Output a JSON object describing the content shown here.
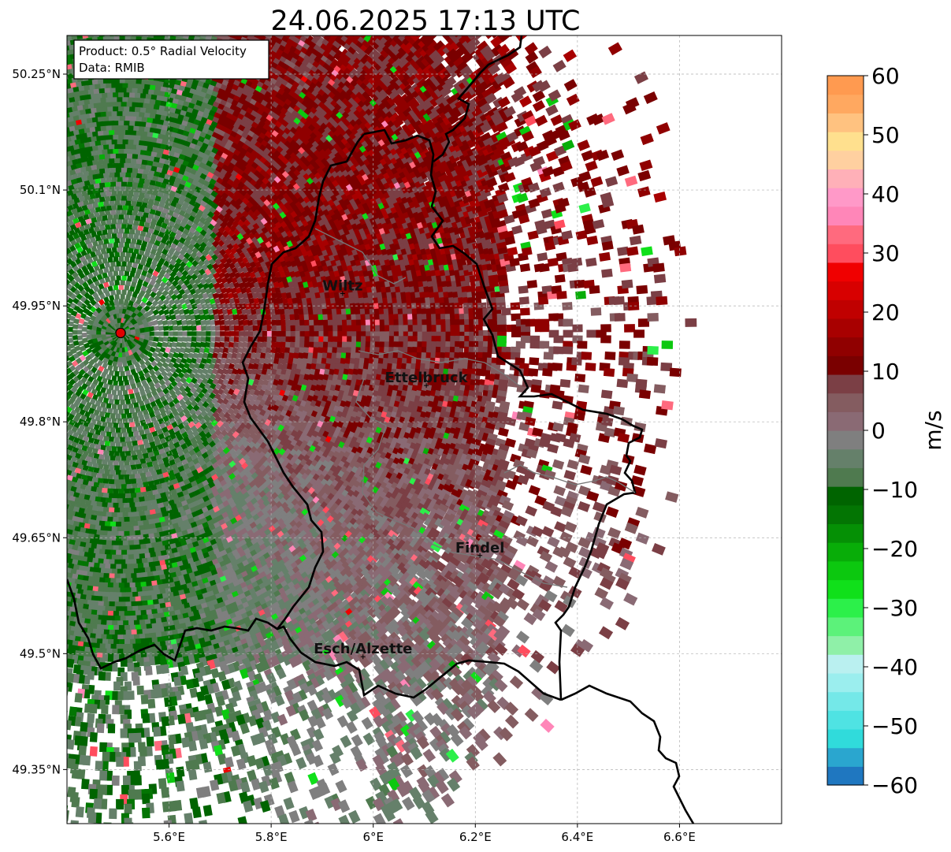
{
  "title": "24.06.2025 17:13 UTC",
  "info": {
    "product": "Product: 0.5° Radial Velocity",
    "data": "Data: RMIB"
  },
  "map": {
    "extent": {
      "lon_min": 5.4,
      "lon_max": 6.8,
      "lat_min": 49.28,
      "lat_max": 50.3
    },
    "lon_ticks": [
      {
        "value": 5.6,
        "label": "5.6°E"
      },
      {
        "value": 5.8,
        "label": "5.8°E"
      },
      {
        "value": 6.0,
        "label": "6°E"
      },
      {
        "value": 6.2,
        "label": "6.2°E"
      },
      {
        "value": 6.4,
        "label": "6.4°E"
      },
      {
        "value": 6.6,
        "label": "6.6°E"
      }
    ],
    "lat_ticks": [
      {
        "value": 50.25,
        "label": "50.25°N"
      },
      {
        "value": 50.1,
        "label": "50.1°N"
      },
      {
        "value": 49.95,
        "label": "49.95°N"
      },
      {
        "value": 49.8,
        "label": "49.8°N"
      },
      {
        "value": 49.65,
        "label": "49.65°N"
      },
      {
        "value": 49.5,
        "label": "49.5°N"
      },
      {
        "value": 49.35,
        "label": "49.35°N"
      }
    ],
    "gridlines": true,
    "radar_site": {
      "lon": 5.505,
      "lat": 49.915
    },
    "cities": [
      {
        "name": "Wiltz",
        "lon": 5.94,
        "lat": 49.966
      },
      {
        "name": "Ettelbruck",
        "lon": 6.104,
        "lat": 49.847
      },
      {
        "name": "Findel",
        "lon": 6.209,
        "lat": 49.627
      },
      {
        "name": "Esch/Alzette",
        "lon": 5.98,
        "lat": 49.496
      }
    ]
  },
  "colorbar": {
    "label": "m/s",
    "vmin": -60,
    "vmax": 60,
    "ticks": [
      {
        "value": 60,
        "label": "60"
      },
      {
        "value": 50,
        "label": "50"
      },
      {
        "value": 40,
        "label": "40"
      },
      {
        "value": 30,
        "label": "30"
      },
      {
        "value": 20,
        "label": "20"
      },
      {
        "value": 10,
        "label": "10"
      },
      {
        "value": 0,
        "label": "0"
      },
      {
        "value": -10,
        "label": "−10"
      },
      {
        "value": -20,
        "label": "−20"
      },
      {
        "value": -30,
        "label": "−30"
      },
      {
        "value": -40,
        "label": "−40"
      },
      {
        "value": -50,
        "label": "−50"
      },
      {
        "value": -60,
        "label": "−60"
      }
    ],
    "colors": [
      "#1f77c0",
      "#2aa6cf",
      "#30dbdb",
      "#4fe3e3",
      "#74e8e8",
      "#9beeee",
      "#baf0f0",
      "#8ff0a8",
      "#5cf27a",
      "#2cf04a",
      "#10e01a",
      "#0cc80f",
      "#08ad08",
      "#059005",
      "#037503",
      "#006400",
      "#4f7a4f",
      "#65806a",
      "#7f7f7f",
      "#8a6a74",
      "#845c60",
      "#7b3f45",
      "#7a0000",
      "#900000",
      "#a80000",
      "#c00000",
      "#d80000",
      "#f00000",
      "#ff4d5e",
      "#ff6a7e",
      "#ff86b8",
      "#ff99c8",
      "#ffb0b8",
      "#ffd0a0",
      "#ffe08e",
      "#ffc280",
      "#ffa860",
      "#ff9a50"
    ]
  }
}
